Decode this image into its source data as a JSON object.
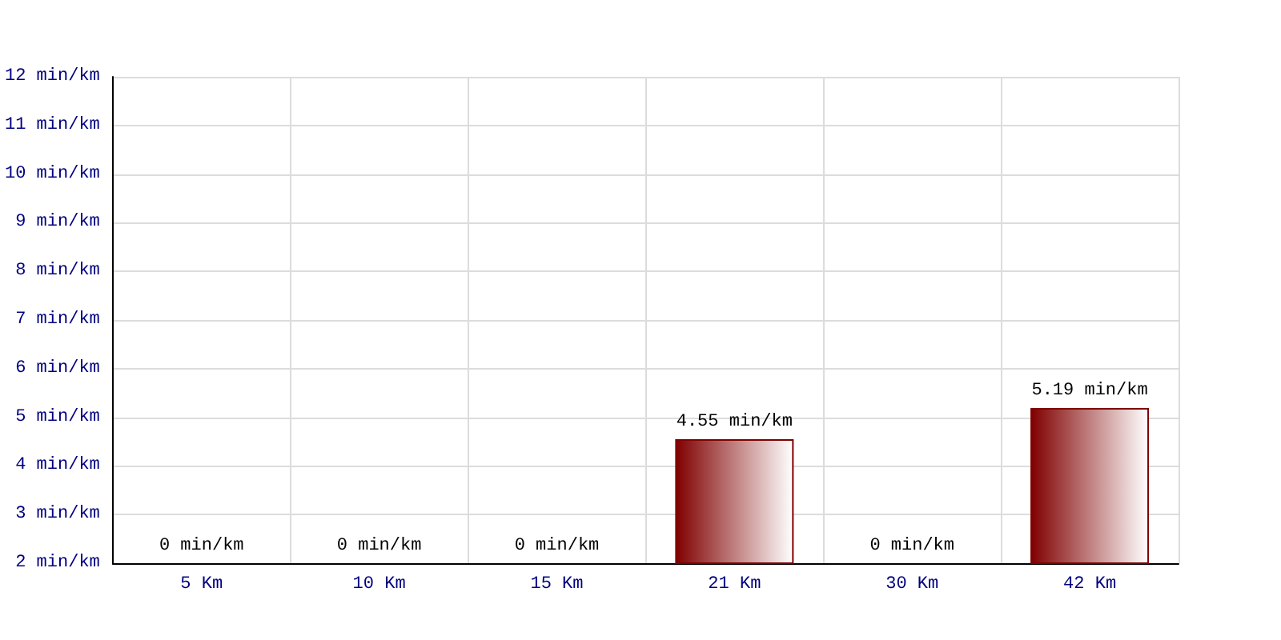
{
  "chart_data": {
    "type": "bar",
    "categories": [
      "5 Km",
      "10 Km",
      "15 Km",
      "21 Km",
      "30 Km",
      "42 Km"
    ],
    "values": [
      null,
      null,
      null,
      4.55,
      null,
      5.19
    ],
    "value_labels": [
      "0 min/km",
      "0 min/km",
      "0 min/km",
      "4.55 min/km",
      "0 min/km",
      "5.19 min/km"
    ],
    "color": "#800000",
    "ylim": [
      2,
      12
    ],
    "yticks": [
      {
        "value": 2,
        "label": "2 min/km"
      },
      {
        "value": 3,
        "label": "3 min/km"
      },
      {
        "value": 4,
        "label": "4 min/km"
      },
      {
        "value": 5,
        "label": "5 min/km"
      },
      {
        "value": 6,
        "label": "6 min/km"
      },
      {
        "value": 7,
        "label": "7 min/km"
      },
      {
        "value": 8,
        "label": "8 min/km"
      },
      {
        "value": 9,
        "label": "9 min/km"
      },
      {
        "value": 10,
        "label": "10 min/km"
      },
      {
        "value": 11,
        "label": "11 min/km"
      },
      {
        "value": 12,
        "label": "12 min/km"
      }
    ],
    "grid": true
  }
}
